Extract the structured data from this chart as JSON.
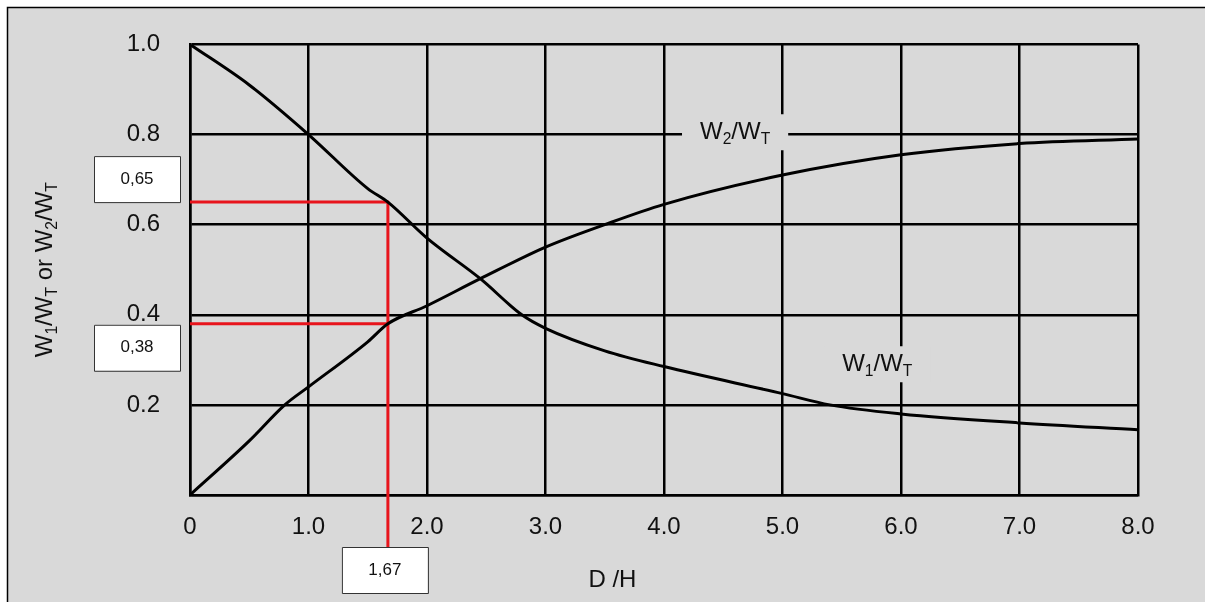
{
  "chart_data": {
    "type": "line",
    "xlabel": "D /H",
    "ylabel": "W$_{1}$/W$_{T}$ or W$_{2}$/W$_{T}$",
    "xlim": [
      0,
      8
    ],
    "ylim": [
      0,
      1
    ],
    "xticks": [
      0,
      {
        "value": 1,
        "label": "1.0"
      },
      {
        "value": 2,
        "label": "2.0"
      },
      {
        "value": 3,
        "label": "3.0"
      },
      {
        "value": 4,
        "label": "4.0"
      },
      {
        "value": 5,
        "label": "5.0"
      },
      {
        "value": 6,
        "label": "6.0"
      },
      {
        "value": 7,
        "label": "7.0"
      },
      {
        "value": 8,
        "label": "8.0"
      }
    ],
    "yticks": [
      {
        "value": 0,
        "label": null
      },
      0.2,
      0.4,
      0.6,
      0.8,
      {
        "value": 1,
        "label": "1.0"
      }
    ],
    "grid": true,
    "legend": false,
    "marker": "none",
    "line_style": "solid",
    "series": [
      {
        "name": "W$_{1}$/W$_{T}$",
        "color": "#000000",
        "x": [
          0,
          0.5,
          1,
          1.5,
          1.67,
          2,
          2.45,
          2.8,
          3,
          3.5,
          4,
          5,
          5.4,
          6,
          7,
          8
        ],
        "values": [
          1.0,
          0.91,
          0.8,
          0.68,
          0.65,
          0.57,
          0.48,
          0.4,
          0.37,
          0.32,
          0.285,
          0.225,
          0.2,
          0.18,
          0.16,
          0.145
        ]
      },
      {
        "name": "W$_{2}$/W$_{T}$",
        "color": "#000000",
        "x": [
          0,
          0.5,
          0.8,
          1,
          1.5,
          1.67,
          2,
          2.45,
          3,
          3.5,
          4,
          5,
          6,
          7,
          8
        ],
        "values": [
          0,
          0.12,
          0.2,
          0.24,
          0.34,
          0.38,
          0.42,
          0.48,
          0.55,
          0.6,
          0.645,
          0.71,
          0.755,
          0.78,
          0.79
        ]
      },
      {
        "color": "#e8141c",
        "x": [
          0,
          1.67
        ],
        "values": [
          0.65,
          0.65
        ]
      },
      {
        "color": "#e8141c",
        "x": [
          0,
          1.67
        ],
        "values": [
          0.38,
          0.38
        ]
      },
      {
        "color": "#e8141c",
        "x": [
          1.67,
          1.67
        ],
        "values": [
          0,
          0.65
        ]
      }
    ],
    "annotations": [
      "0,65",
      "0,38",
      "1,67"
    ]
  }
}
